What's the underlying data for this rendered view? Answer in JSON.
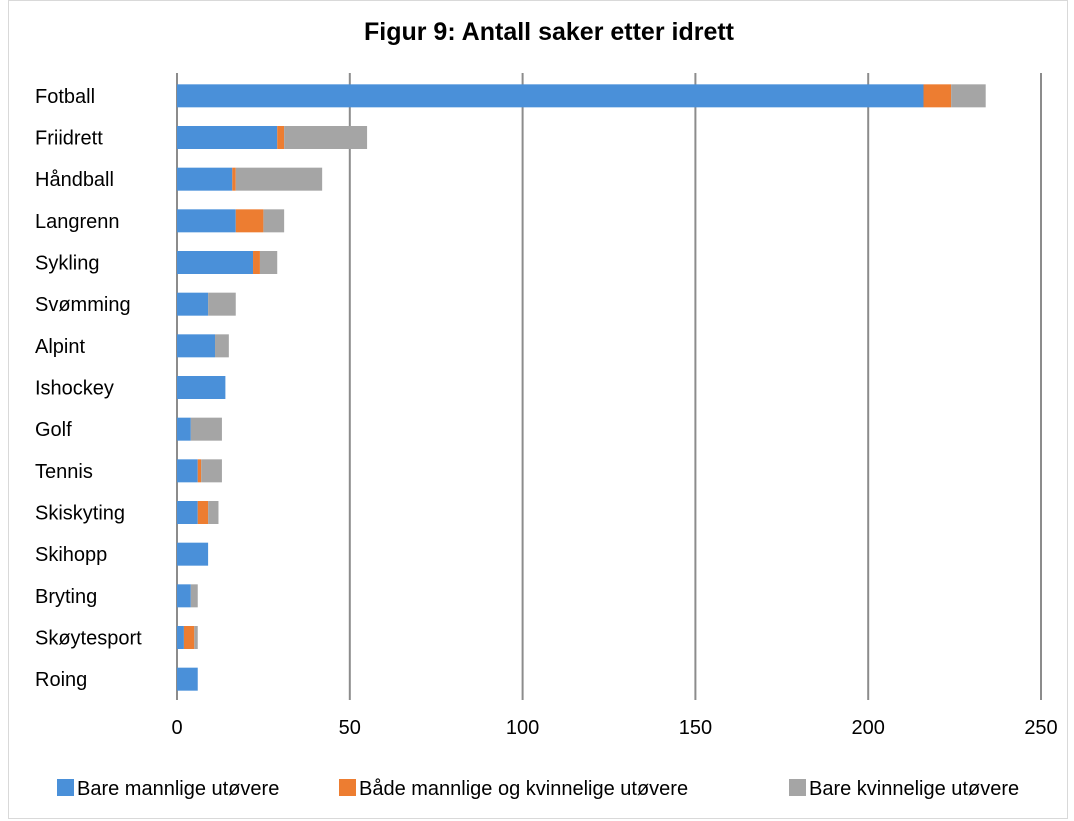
{
  "chart_data": {
    "type": "bar",
    "orientation": "horizontal",
    "stacked": true,
    "title": "Figur 9: Antall saker etter idrett",
    "xlabel": "",
    "ylabel": "",
    "xlim": [
      0,
      250
    ],
    "xticks": [
      0,
      50,
      100,
      150,
      200,
      250
    ],
    "grid": true,
    "legend_position": "bottom",
    "categories": [
      "Fotball",
      "Friidrett",
      "Håndball",
      "Langrenn",
      "Sykling",
      "Svømming",
      "Alpint",
      "Ishockey",
      "Golf",
      "Tennis",
      "Skiskyting",
      "Skihopp",
      "Bryting",
      "Skøytesport",
      "Roing"
    ],
    "series": [
      {
        "name": "Bare mannlige utøvere",
        "color": "#4a90d9",
        "values": [
          216,
          29,
          16,
          17,
          22,
          9,
          11,
          14,
          4,
          6,
          6,
          9,
          4,
          2,
          6
        ]
      },
      {
        "name": "Både mannlige og kvinnelige utøvere",
        "color": "#ed7d31",
        "values": [
          8,
          2,
          1,
          8,
          2,
          0,
          0,
          0,
          0,
          1,
          3,
          0,
          0,
          3,
          0
        ]
      },
      {
        "name": "Bare kvinnelige utøvere",
        "color": "#a5a5a5",
        "values": [
          10,
          24,
          25,
          6,
          5,
          8,
          4,
          0,
          9,
          6,
          3,
          0,
          2,
          1,
          0
        ]
      }
    ]
  }
}
